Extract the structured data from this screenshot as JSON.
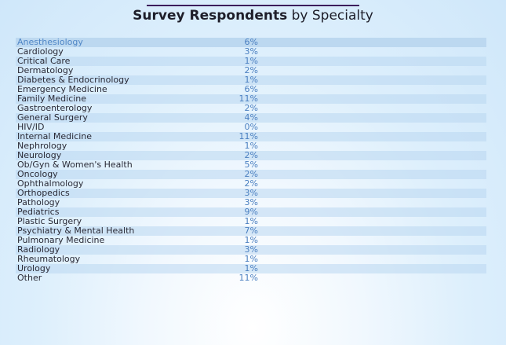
{
  "title": {
    "bold": "Survey Respondents",
    "rest": " by Specialty"
  },
  "colors": {
    "title_rule": "#3c1d5c",
    "value_text": "#4a7fc0",
    "highlight_text": "#4f86c6",
    "row_stripe": "#b9d7f0"
  },
  "chart_data": {
    "type": "table",
    "title": "Survey Respondents by Specialty",
    "highlighted": "Anesthesiology",
    "rows": [
      {
        "specialty": "Anesthesiology",
        "share": "6%"
      },
      {
        "specialty": "Cardiology",
        "share": "3%"
      },
      {
        "specialty": "Critical Care",
        "share": "1%"
      },
      {
        "specialty": "Dermatology",
        "share": "2%"
      },
      {
        "specialty": "Diabetes & Endocrinology",
        "share": "1%"
      },
      {
        "specialty": "Emergency Medicine",
        "share": "6%"
      },
      {
        "specialty": "Family Medicine",
        "share": "11%"
      },
      {
        "specialty": "Gastroenterology",
        "share": "2%"
      },
      {
        "specialty": "General Surgery",
        "share": "4%"
      },
      {
        "specialty": "HIV/ID",
        "share": "0%"
      },
      {
        "specialty": "Internal Medicine",
        "share": "11%"
      },
      {
        "specialty": "Nephrology",
        "share": "1%"
      },
      {
        "specialty": "Neurology",
        "share": "2%"
      },
      {
        "specialty": "Ob/Gyn & Women's Health",
        "share": "5%"
      },
      {
        "specialty": "Oncology",
        "share": "2%"
      },
      {
        "specialty": "Ophthalmology",
        "share": "2%"
      },
      {
        "specialty": "Orthopedics",
        "share": "3%"
      },
      {
        "specialty": "Pathology",
        "share": "3%"
      },
      {
        "specialty": "Pediatrics",
        "share": "9%"
      },
      {
        "specialty": "Plastic Surgery",
        "share": "1%"
      },
      {
        "specialty": "Psychiatry & Mental Health",
        "share": "7%"
      },
      {
        "specialty": "Pulmonary Medicine",
        "share": "1%"
      },
      {
        "specialty": "Radiology",
        "share": "3%"
      },
      {
        "specialty": "Rheumatology",
        "share": "1%"
      },
      {
        "specialty": "Urology",
        "share": "1%"
      },
      {
        "specialty": "Other",
        "share": "11%"
      }
    ]
  }
}
